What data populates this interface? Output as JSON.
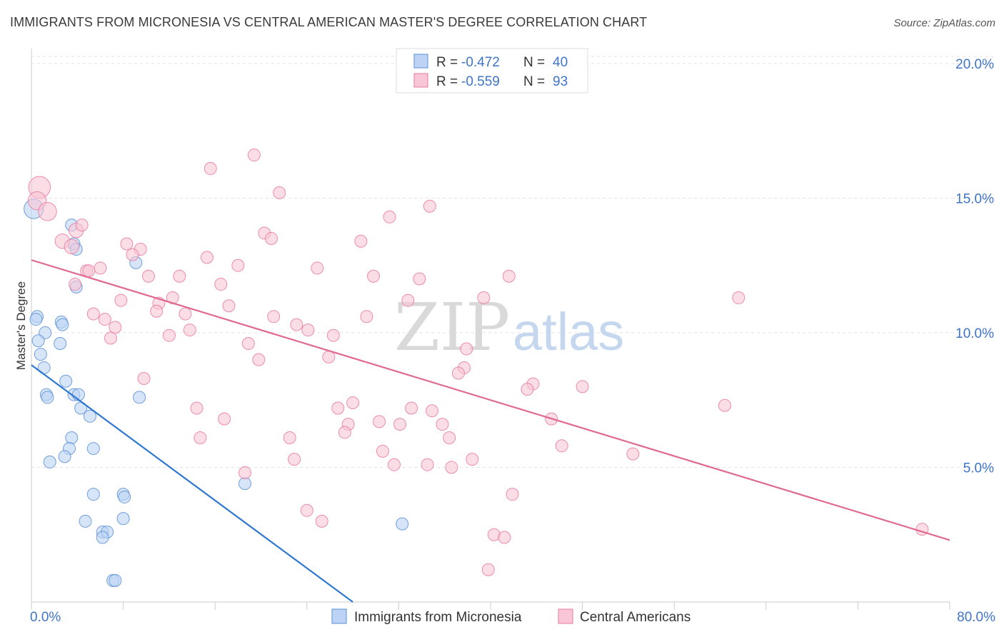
{
  "title": "IMMIGRANTS FROM MICRONESIA VS CENTRAL AMERICAN MASTER'S DEGREE CORRELATION CHART",
  "source": "Source: ZipAtlas.com",
  "watermark": {
    "part1": "ZIP",
    "part2": "atlas"
  },
  "colors": {
    "blue": "#5b8fd6",
    "blue_fill": "#bcd3f5",
    "blue_line": "#2e78d2",
    "pink": "#e97aa0",
    "pink_fill": "#f8c6d6",
    "pink_line": "#e0698f",
    "tick": "#3f74c9"
  },
  "legend": {
    "r_label": "R =",
    "n_label": "N =",
    "rows": [
      {
        "r": "-0.472",
        "n": "40"
      },
      {
        "r": "-0.559",
        "n": "93"
      }
    ]
  },
  "chart_data": {
    "type": "scatter",
    "title": "IMMIGRANTS FROM MICRONESIA VS CENTRAL AMERICAN MASTER'S DEGREE CORRELATION CHART",
    "xlabel": "",
    "ylabel": "Master's Degree",
    "xlim": [
      0,
      80
    ],
    "ylim": [
      0,
      20.5
    ],
    "x_tick_labels": [
      "0.0%",
      "80.0%"
    ],
    "y_ticks": [
      5,
      10,
      15,
      20
    ],
    "y_tick_labels": [
      "5.0%",
      "10.0%",
      "15.0%",
      "20.0%"
    ],
    "grid": true,
    "legend_position": "top-center",
    "series": [
      {
        "name": "Immigrants from Micronesia",
        "color": "#5b8fd6",
        "trend": {
          "x": [
            0,
            28
          ],
          "y": [
            8.8,
            0
          ]
        },
        "points": [
          {
            "x": 0.2,
            "y": 14.6,
            "s": 1.6
          },
          {
            "x": 3.5,
            "y": 14.0,
            "s": 1.0
          },
          {
            "x": 3.7,
            "y": 13.3,
            "s": 1.0
          },
          {
            "x": 3.9,
            "y": 13.1,
            "s": 1.0
          },
          {
            "x": 9.1,
            "y": 12.6,
            "s": 1.0
          },
          {
            "x": 3.9,
            "y": 11.7,
            "s": 1.0
          },
          {
            "x": 0.5,
            "y": 10.6,
            "s": 1.0
          },
          {
            "x": 0.4,
            "y": 10.5,
            "s": 1.0
          },
          {
            "x": 2.6,
            "y": 10.4,
            "s": 1.0
          },
          {
            "x": 2.7,
            "y": 10.3,
            "s": 1.0
          },
          {
            "x": 1.2,
            "y": 10.0,
            "s": 1.0
          },
          {
            "x": 0.6,
            "y": 9.7,
            "s": 1.0
          },
          {
            "x": 2.5,
            "y": 9.6,
            "s": 1.0
          },
          {
            "x": 0.8,
            "y": 9.2,
            "s": 1.0
          },
          {
            "x": 1.1,
            "y": 8.7,
            "s": 1.0
          },
          {
            "x": 3.0,
            "y": 8.2,
            "s": 1.0
          },
          {
            "x": 1.3,
            "y": 7.7,
            "s": 1.0
          },
          {
            "x": 1.4,
            "y": 7.6,
            "s": 1.0
          },
          {
            "x": 3.7,
            "y": 7.7,
            "s": 1.0
          },
          {
            "x": 4.1,
            "y": 7.7,
            "s": 1.0
          },
          {
            "x": 9.4,
            "y": 7.6,
            "s": 1.0
          },
          {
            "x": 4.3,
            "y": 7.2,
            "s": 1.0
          },
          {
            "x": 5.1,
            "y": 6.9,
            "s": 1.0
          },
          {
            "x": 3.5,
            "y": 6.1,
            "s": 1.0
          },
          {
            "x": 3.3,
            "y": 5.7,
            "s": 1.0
          },
          {
            "x": 5.4,
            "y": 5.7,
            "s": 1.0
          },
          {
            "x": 2.9,
            "y": 5.4,
            "s": 1.0
          },
          {
            "x": 1.6,
            "y": 5.2,
            "s": 1.0
          },
          {
            "x": 18.6,
            "y": 4.4,
            "s": 1.0
          },
          {
            "x": 5.4,
            "y": 4.0,
            "s": 1.0
          },
          {
            "x": 8.0,
            "y": 4.0,
            "s": 1.0
          },
          {
            "x": 8.1,
            "y": 3.9,
            "s": 1.0
          },
          {
            "x": 4.7,
            "y": 3.0,
            "s": 1.0
          },
          {
            "x": 8.0,
            "y": 3.1,
            "s": 1.0
          },
          {
            "x": 32.3,
            "y": 2.9,
            "s": 1.0
          },
          {
            "x": 6.2,
            "y": 2.6,
            "s": 1.0
          },
          {
            "x": 6.6,
            "y": 2.6,
            "s": 1.0
          },
          {
            "x": 6.2,
            "y": 2.4,
            "s": 1.0
          },
          {
            "x": 7.1,
            "y": 0.8,
            "s": 1.0
          },
          {
            "x": 7.3,
            "y": 0.8,
            "s": 1.0
          }
        ]
      },
      {
        "name": "Central Americans",
        "color": "#e97aa0",
        "trend": {
          "x": [
            0,
            80
          ],
          "y": [
            12.7,
            2.3
          ]
        },
        "points": [
          {
            "x": 0.7,
            "y": 15.4,
            "s": 1.8
          },
          {
            "x": 0.5,
            "y": 14.9,
            "s": 1.5
          },
          {
            "x": 1.4,
            "y": 14.5,
            "s": 1.5
          },
          {
            "x": 3.9,
            "y": 13.8,
            "s": 1.2
          },
          {
            "x": 2.7,
            "y": 13.4,
            "s": 1.2
          },
          {
            "x": 3.5,
            "y": 13.2,
            "s": 1.2
          },
          {
            "x": 19.4,
            "y": 16.6,
            "s": 1.0
          },
          {
            "x": 15.6,
            "y": 16.1,
            "s": 1.0
          },
          {
            "x": 21.6,
            "y": 15.2,
            "s": 1.0
          },
          {
            "x": 34.7,
            "y": 14.7,
            "s": 1.0
          },
          {
            "x": 31.2,
            "y": 14.3,
            "s": 1.0
          },
          {
            "x": 4.4,
            "y": 14.0,
            "s": 1.0
          },
          {
            "x": 20.3,
            "y": 13.7,
            "s": 1.0
          },
          {
            "x": 20.9,
            "y": 13.5,
            "s": 1.0
          },
          {
            "x": 28.7,
            "y": 13.4,
            "s": 1.0
          },
          {
            "x": 8.3,
            "y": 13.3,
            "s": 1.0
          },
          {
            "x": 9.5,
            "y": 13.1,
            "s": 1.0
          },
          {
            "x": 8.8,
            "y": 12.9,
            "s": 1.0
          },
          {
            "x": 15.3,
            "y": 12.8,
            "s": 1.0
          },
          {
            "x": 18.0,
            "y": 12.5,
            "s": 1.0
          },
          {
            "x": 24.9,
            "y": 12.4,
            "s": 1.0
          },
          {
            "x": 6.0,
            "y": 12.4,
            "s": 1.0
          },
          {
            "x": 4.8,
            "y": 12.3,
            "s": 1.0
          },
          {
            "x": 5.0,
            "y": 12.3,
            "s": 1.0
          },
          {
            "x": 10.2,
            "y": 12.1,
            "s": 1.0
          },
          {
            "x": 12.9,
            "y": 12.1,
            "s": 1.0
          },
          {
            "x": 29.8,
            "y": 12.1,
            "s": 1.0
          },
          {
            "x": 33.8,
            "y": 12.0,
            "s": 1.0
          },
          {
            "x": 41.6,
            "y": 12.1,
            "s": 1.0
          },
          {
            "x": 3.8,
            "y": 11.8,
            "s": 1.0
          },
          {
            "x": 16.5,
            "y": 11.8,
            "s": 1.0
          },
          {
            "x": 12.3,
            "y": 11.3,
            "s": 1.0
          },
          {
            "x": 39.4,
            "y": 11.3,
            "s": 1.0
          },
          {
            "x": 61.6,
            "y": 11.3,
            "s": 1.0
          },
          {
            "x": 7.8,
            "y": 11.2,
            "s": 1.0
          },
          {
            "x": 11.1,
            "y": 11.1,
            "s": 1.0
          },
          {
            "x": 17.2,
            "y": 11.0,
            "s": 1.0
          },
          {
            "x": 32.8,
            "y": 11.2,
            "s": 1.0
          },
          {
            "x": 10.9,
            "y": 10.8,
            "s": 1.0
          },
          {
            "x": 5.4,
            "y": 10.7,
            "s": 1.0
          },
          {
            "x": 13.4,
            "y": 10.7,
            "s": 1.0
          },
          {
            "x": 21.1,
            "y": 10.6,
            "s": 1.0
          },
          {
            "x": 29.2,
            "y": 10.6,
            "s": 1.0
          },
          {
            "x": 6.4,
            "y": 10.5,
            "s": 1.0
          },
          {
            "x": 7.3,
            "y": 10.2,
            "s": 1.0
          },
          {
            "x": 13.8,
            "y": 10.1,
            "s": 1.0
          },
          {
            "x": 23.1,
            "y": 10.3,
            "s": 1.0
          },
          {
            "x": 24.1,
            "y": 10.1,
            "s": 1.0
          },
          {
            "x": 12.0,
            "y": 9.9,
            "s": 1.0
          },
          {
            "x": 26.3,
            "y": 9.9,
            "s": 1.0
          },
          {
            "x": 6.9,
            "y": 9.8,
            "s": 1.0
          },
          {
            "x": 18.9,
            "y": 9.6,
            "s": 1.0
          },
          {
            "x": 37.9,
            "y": 9.4,
            "s": 1.0
          },
          {
            "x": 25.9,
            "y": 9.1,
            "s": 1.0
          },
          {
            "x": 19.8,
            "y": 9.0,
            "s": 1.0
          },
          {
            "x": 37.7,
            "y": 8.7,
            "s": 1.0
          },
          {
            "x": 37.2,
            "y": 8.5,
            "s": 1.0
          },
          {
            "x": 9.8,
            "y": 8.3,
            "s": 1.0
          },
          {
            "x": 43.7,
            "y": 8.1,
            "s": 1.0
          },
          {
            "x": 43.2,
            "y": 7.9,
            "s": 1.0
          },
          {
            "x": 48.0,
            "y": 8.0,
            "s": 1.0
          },
          {
            "x": 28.0,
            "y": 7.4,
            "s": 1.0
          },
          {
            "x": 60.4,
            "y": 7.3,
            "s": 1.0
          },
          {
            "x": 14.4,
            "y": 7.2,
            "s": 1.0
          },
          {
            "x": 26.7,
            "y": 7.2,
            "s": 1.0
          },
          {
            "x": 33.1,
            "y": 7.2,
            "s": 1.0
          },
          {
            "x": 34.9,
            "y": 7.1,
            "s": 1.0
          },
          {
            "x": 16.8,
            "y": 6.8,
            "s": 1.0
          },
          {
            "x": 45.3,
            "y": 6.8,
            "s": 1.0
          },
          {
            "x": 30.3,
            "y": 6.7,
            "s": 1.0
          },
          {
            "x": 32.1,
            "y": 6.6,
            "s": 1.0
          },
          {
            "x": 27.6,
            "y": 6.6,
            "s": 1.0
          },
          {
            "x": 35.8,
            "y": 6.6,
            "s": 1.0
          },
          {
            "x": 27.3,
            "y": 6.3,
            "s": 1.0
          },
          {
            "x": 14.7,
            "y": 6.1,
            "s": 1.0
          },
          {
            "x": 22.5,
            "y": 6.1,
            "s": 1.0
          },
          {
            "x": 36.4,
            "y": 6.1,
            "s": 1.0
          },
          {
            "x": 46.2,
            "y": 5.8,
            "s": 1.0
          },
          {
            "x": 30.6,
            "y": 5.6,
            "s": 1.0
          },
          {
            "x": 52.4,
            "y": 5.5,
            "s": 1.0
          },
          {
            "x": 22.9,
            "y": 5.3,
            "s": 1.0
          },
          {
            "x": 38.4,
            "y": 5.3,
            "s": 1.0
          },
          {
            "x": 31.6,
            "y": 5.1,
            "s": 1.0
          },
          {
            "x": 34.5,
            "y": 5.1,
            "s": 1.0
          },
          {
            "x": 36.6,
            "y": 5.0,
            "s": 1.0
          },
          {
            "x": 18.6,
            "y": 4.8,
            "s": 1.0
          },
          {
            "x": 41.9,
            "y": 4.0,
            "s": 1.0
          },
          {
            "x": 24.0,
            "y": 3.4,
            "s": 1.0
          },
          {
            "x": 25.3,
            "y": 3.0,
            "s": 1.0
          },
          {
            "x": 40.3,
            "y": 2.5,
            "s": 1.0
          },
          {
            "x": 41.2,
            "y": 2.4,
            "s": 1.0
          },
          {
            "x": 77.6,
            "y": 2.7,
            "s": 1.0
          },
          {
            "x": 39.8,
            "y": 1.2,
            "s": 1.0
          }
        ]
      }
    ]
  }
}
